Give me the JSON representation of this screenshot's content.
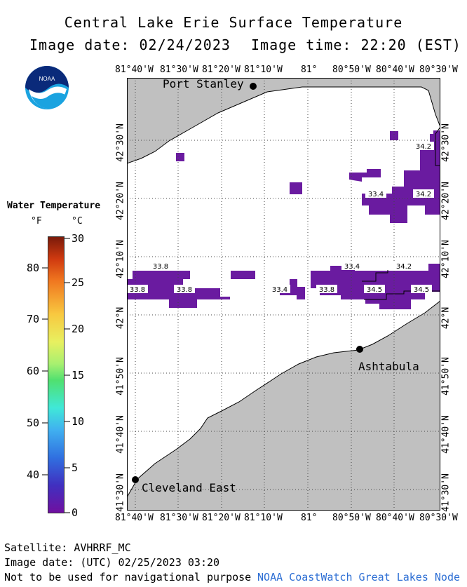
{
  "header": {
    "title": "Central Lake Erie Surface Temperature",
    "image_date": "Image date: 02/24/2023",
    "image_time": "Image time: 22:20 (EST)"
  },
  "logo": {
    "text": "NOAA"
  },
  "legend": {
    "title": "Water Temperature",
    "unit_f": "°F",
    "unit_c": "°C",
    "f_ticks": [
      "80",
      "70",
      "60",
      "50",
      "40"
    ],
    "c_ticks": [
      "30",
      "25",
      "20",
      "15",
      "10",
      "5",
      "0"
    ]
  },
  "axes": {
    "lon_labels": [
      "81°40'W",
      "81°30'W",
      "81°20'W",
      "81°10'W",
      "81°",
      "80°50'W",
      "80°40'W",
      "80°30'W"
    ],
    "lat_labels": [
      "42°30'N",
      "42°20'N",
      "42°10'N",
      "42°N",
      "41°50'N",
      "41°40'N",
      "41°30'N"
    ]
  },
  "places": {
    "port_stanley": "Port Stanley",
    "ashtabula": "Ashtabula",
    "cleveland_east": "Cleveland East"
  },
  "temperature_labels": [
    "34.2",
    "33.4",
    "34.2",
    "33.8",
    "33.4",
    "34.2",
    "33.8",
    "33.8",
    "33.4",
    "33.8",
    "34.5",
    "34.5"
  ],
  "colors": {
    "land": "#c0c0c0",
    "water_cold": "#6a1ba0",
    "credit": "#2e6fd4"
  },
  "footer": {
    "satellite": "Satellite: AVHRRF_MC",
    "utc_date": "Image date: (UTC) 02/25/2023  03:20",
    "disclaimer": "Not to be used for navigational purpose",
    "credit": "NOAA CoastWatch Great Lakes Node"
  }
}
